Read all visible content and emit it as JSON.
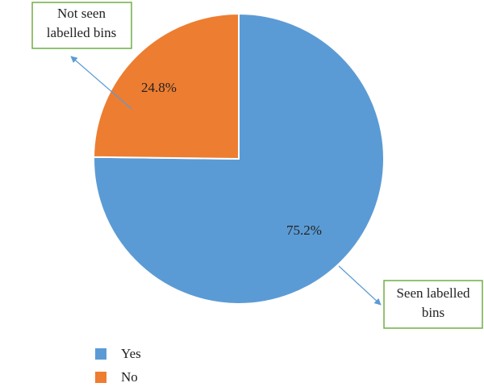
{
  "chart_data": {
    "type": "pie",
    "categories": [
      "Yes",
      "No"
    ],
    "values": [
      75.2,
      24.8
    ],
    "value_labels": [
      "75.2%",
      "24.8%"
    ],
    "colors": [
      "#5b9bd5",
      "#ed7d31"
    ],
    "annotations": [
      {
        "lines": [
          "Not seen",
          "labelled bins"
        ]
      },
      {
        "lines": [
          "Seen labelled",
          "bins"
        ]
      }
    ]
  }
}
